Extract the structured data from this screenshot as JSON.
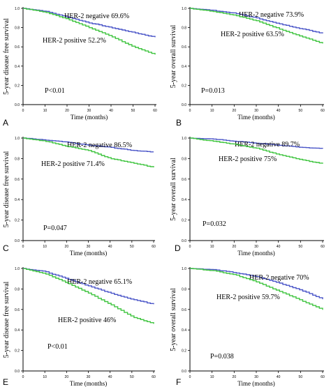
{
  "figure": {
    "panels": [
      "A",
      "B",
      "C",
      "D",
      "E",
      "F"
    ]
  },
  "colors": {
    "negative": "#4a55c8",
    "positive": "#3fc43f",
    "axis": "#000000"
  },
  "chart_data": [
    {
      "type": "line",
      "panel": "A",
      "xlabel": "Time (months)",
      "ylabel": "5-year disease free survival",
      "xlim": [
        0,
        60
      ],
      "ylim": [
        0,
        1.0
      ],
      "xticks": [
        "0",
        "10",
        "20",
        "30",
        "40",
        "50",
        "60"
      ],
      "yticks": [
        "0.0",
        "0.2",
        "0.4",
        "0.6",
        "0.8",
        "1.0"
      ],
      "pvalue": "P<0.01",
      "series": [
        {
          "name": "HER-2 negative 69.6%",
          "color": "#4a55c8",
          "x": [
            0,
            10,
            20,
            30,
            40,
            50,
            60
          ],
          "y": [
            1.0,
            0.97,
            0.91,
            0.85,
            0.8,
            0.75,
            0.7
          ]
        },
        {
          "name": "HER-2 positive 52.2%",
          "color": "#3fc43f",
          "x": [
            0,
            10,
            20,
            30,
            40,
            50,
            60
          ],
          "y": [
            1.0,
            0.96,
            0.89,
            0.8,
            0.71,
            0.6,
            0.52
          ]
        }
      ]
    },
    {
      "type": "line",
      "panel": "B",
      "xlabel": "Time (months)",
      "ylabel": "5-year overall survival",
      "xlim": [
        0,
        60
      ],
      "ylim": [
        0,
        1.0
      ],
      "xticks": [
        "0",
        "10",
        "20",
        "30",
        "40",
        "50",
        "60"
      ],
      "yticks": [
        "0.0",
        "0.2",
        "0.4",
        "0.6",
        "0.8",
        "1.0"
      ],
      "pvalue": "P=0.013",
      "series": [
        {
          "name": "HER-2 negative 73.9%",
          "color": "#4a55c8",
          "x": [
            0,
            10,
            20,
            30,
            40,
            50,
            60
          ],
          "y": [
            1.0,
            0.98,
            0.95,
            0.9,
            0.84,
            0.79,
            0.74
          ]
        },
        {
          "name": "HER-2 positive 63.5%",
          "color": "#3fc43f",
          "x": [
            0,
            10,
            20,
            30,
            40,
            50,
            60
          ],
          "y": [
            1.0,
            0.97,
            0.93,
            0.87,
            0.79,
            0.71,
            0.635
          ]
        }
      ]
    },
    {
      "type": "line",
      "panel": "C",
      "xlabel": "Time (months)",
      "ylabel": "5-year disease free survival",
      "xlim": [
        0,
        60
      ],
      "ylim": [
        0,
        1.0
      ],
      "xticks": [
        "0",
        "10",
        "20",
        "30",
        "40",
        "50",
        "60"
      ],
      "yticks": [
        "0.0",
        "0.2",
        "0.4",
        "0.6",
        "0.8",
        "1.0"
      ],
      "pvalue": "P=0.047",
      "series": [
        {
          "name": "HER-2 negative 86.5%",
          "color": "#4a55c8",
          "x": [
            0,
            10,
            20,
            30,
            40,
            50,
            60
          ],
          "y": [
            1.0,
            0.98,
            0.96,
            0.93,
            0.91,
            0.88,
            0.865
          ]
        },
        {
          "name": "HER-2 positive 71.4%",
          "color": "#3fc43f",
          "x": [
            0,
            10,
            20,
            30,
            40,
            50,
            60
          ],
          "y": [
            1.0,
            0.97,
            0.92,
            0.88,
            0.8,
            0.76,
            0.714
          ]
        }
      ]
    },
    {
      "type": "line",
      "panel": "D",
      "xlabel": "Time (months)",
      "ylabel": "5-year overall survival",
      "xlim": [
        0,
        60
      ],
      "ylim": [
        0,
        1.0
      ],
      "xticks": [
        "0",
        "10",
        "20",
        "30",
        "40",
        "50",
        "60"
      ],
      "yticks": [
        "0.0",
        "0.2",
        "0.4",
        "0.6",
        "0.8",
        "1.0"
      ],
      "pvalue": "P=0.032",
      "series": [
        {
          "name": "HER-2 negative 89.7%",
          "color": "#4a55c8",
          "x": [
            0,
            10,
            20,
            30,
            40,
            50,
            60
          ],
          "y": [
            1.0,
            0.99,
            0.97,
            0.95,
            0.93,
            0.91,
            0.897
          ]
        },
        {
          "name": "HER-2 positive 75%",
          "color": "#3fc43f",
          "x": [
            0,
            10,
            20,
            30,
            40,
            50,
            60
          ],
          "y": [
            1.0,
            0.97,
            0.94,
            0.9,
            0.84,
            0.79,
            0.75
          ]
        }
      ]
    },
    {
      "type": "line",
      "panel": "E",
      "xlabel": "Time (months)",
      "ylabel": "5-year disease free survival",
      "xlim": [
        0,
        60
      ],
      "ylim": [
        0,
        1.0
      ],
      "xticks": [
        "0",
        "10",
        "20",
        "30",
        "40",
        "50",
        "60"
      ],
      "yticks": [
        "0.0",
        "0.2",
        "0.4",
        "0.6",
        "0.8",
        "1.0"
      ],
      "pvalue": "P<0.01",
      "series": [
        {
          "name": "HER-2 negative 65.1%",
          "color": "#4a55c8",
          "x": [
            0,
            10,
            20,
            30,
            40,
            50,
            60
          ],
          "y": [
            1.0,
            0.97,
            0.9,
            0.83,
            0.76,
            0.7,
            0.651
          ]
        },
        {
          "name": "HER-2 positive 46%",
          "color": "#3fc43f",
          "x": [
            0,
            10,
            20,
            30,
            40,
            50,
            60
          ],
          "y": [
            1.0,
            0.95,
            0.86,
            0.76,
            0.65,
            0.53,
            0.46
          ]
        }
      ]
    },
    {
      "type": "line",
      "panel": "F",
      "xlabel": "Time (months)",
      "ylabel": "5-year overall survival",
      "xlim": [
        0,
        60
      ],
      "ylim": [
        0,
        1.0
      ],
      "xticks": [
        "0",
        "10",
        "20",
        "30",
        "40",
        "50",
        "60"
      ],
      "yticks": [
        "0.0",
        "0.2",
        "0.4",
        "0.6",
        "0.8",
        "1.0"
      ],
      "pvalue": "P=0.038",
      "series": [
        {
          "name": "HER-2 negative 70%",
          "color": "#4a55c8",
          "x": [
            0,
            10,
            20,
            30,
            40,
            50,
            60
          ],
          "y": [
            1.0,
            0.99,
            0.96,
            0.92,
            0.86,
            0.79,
            0.7
          ]
        },
        {
          "name": "HER-2 positive  59.7%",
          "color": "#3fc43f",
          "x": [
            0,
            10,
            20,
            30,
            40,
            50,
            60
          ],
          "y": [
            1.0,
            0.98,
            0.94,
            0.87,
            0.78,
            0.69,
            0.597
          ]
        }
      ]
    }
  ]
}
